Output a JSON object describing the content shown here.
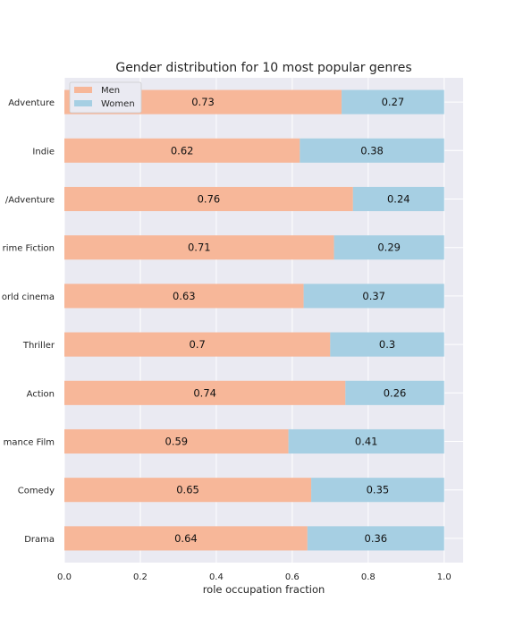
{
  "chart_data": {
    "type": "bar",
    "orientation": "horizontal",
    "stacked": true,
    "title": "Gender distribution for 10 most popular genres",
    "xlabel": "role occupation fraction",
    "ylabel": "",
    "xlim": [
      0,
      1.05
    ],
    "x_ticks": [
      "0.0",
      "0.2",
      "0.4",
      "0.6",
      "0.8",
      "1.0"
    ],
    "grid": true,
    "legend_position": "top-left",
    "categories": [
      "Adventure",
      "Indie",
      "/Adventure",
      "rime Fiction",
      "orld cinema",
      "Thriller",
      "Action",
      "mance Film",
      "Comedy",
      "Drama"
    ],
    "series": [
      {
        "name": "Men",
        "color": "#f7b799",
        "values": [
          0.73,
          0.62,
          0.76,
          0.71,
          0.63,
          0.7,
          0.74,
          0.59,
          0.65,
          0.64
        ],
        "labels": [
          "0.73",
          "0.62",
          "0.76",
          "0.71",
          "0.63",
          "0.7",
          "0.74",
          "0.59",
          "0.65",
          "0.64"
        ]
      },
      {
        "name": "Women",
        "color": "#a6cfe3",
        "values": [
          0.27,
          0.38,
          0.24,
          0.29,
          0.37,
          0.3,
          0.26,
          0.41,
          0.35,
          0.36
        ],
        "labels": [
          "0.27",
          "0.38",
          "0.24",
          "0.29",
          "0.37",
          "0.3",
          "0.26",
          "0.41",
          "0.35",
          "0.36"
        ]
      }
    ],
    "colors": {
      "plot_background": "#eaeaf2",
      "grid": "#ffffff"
    }
  }
}
